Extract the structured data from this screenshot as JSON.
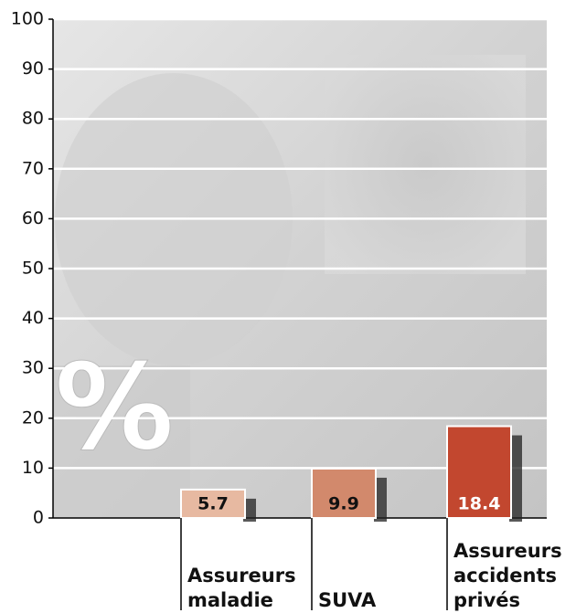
{
  "chart_data": {
    "type": "bar",
    "symbol": "%",
    "categories": [
      "Assureurs maladie",
      "SUVA",
      "Assureurs accidents privés"
    ],
    "values": [
      5.7,
      9.9,
      18.4
    ],
    "colors": [
      "#e7b9a1",
      "#d2896c",
      "#c2472f"
    ],
    "ylim": [
      0,
      100
    ],
    "yticks": [
      0,
      10,
      20,
      30,
      40,
      50,
      60,
      70,
      80,
      90,
      100
    ],
    "grid": true
  }
}
